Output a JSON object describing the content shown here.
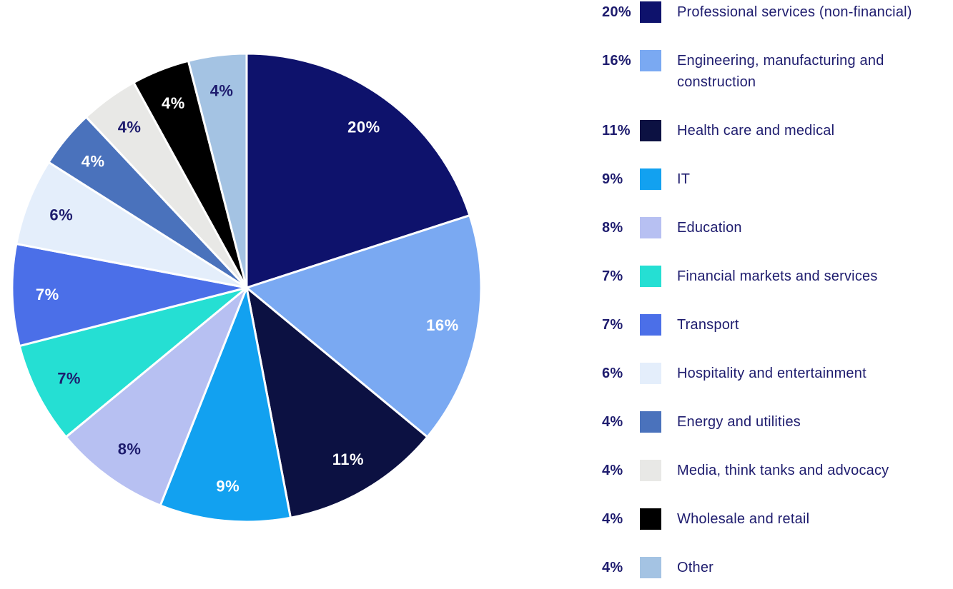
{
  "background_color": "#FFFFFF",
  "text_color": "#1E1C6E",
  "chart_data": {
    "type": "pie",
    "title": "",
    "legend_position": "right",
    "start_angle_deg": 0,
    "direction": "clockwise",
    "unit": "%",
    "slices": [
      {
        "label": "Professional services (non-financial)",
        "value": 20,
        "percent_label": "20%",
        "color": "#0E126C",
        "slice_text_color": "#FFFFFF"
      },
      {
        "label": "Engineering, manufacturing and construction",
        "value": 16,
        "percent_label": "16%",
        "color": "#7AA9F2",
        "slice_text_color": "#FFFFFF"
      },
      {
        "label": "Health care and medical",
        "value": 11,
        "percent_label": "11%",
        "color": "#0C1142",
        "slice_text_color": "#FFFFFF"
      },
      {
        "label": "IT",
        "value": 9,
        "percent_label": "9%",
        "color": "#12A1F0",
        "slice_text_color": "#FFFFFF"
      },
      {
        "label": "Education",
        "value": 8,
        "percent_label": "8%",
        "color": "#B7C0F2",
        "slice_text_color": "#1E1C6E"
      },
      {
        "label": "Financial markets and services",
        "value": 7,
        "percent_label": "7%",
        "color": "#25DFD3",
        "slice_text_color": "#1E1C6E"
      },
      {
        "label": "Transport",
        "value": 7,
        "percent_label": "7%",
        "color": "#4B6FE8",
        "slice_text_color": "#FFFFFF"
      },
      {
        "label": "Hospitality and entertainment",
        "value": 6,
        "percent_label": "6%",
        "color": "#E4EEFB",
        "slice_text_color": "#1E1C6E"
      },
      {
        "label": "Energy and utilities",
        "value": 4,
        "percent_label": "4%",
        "color": "#4A72BC",
        "slice_text_color": "#FFFFFF"
      },
      {
        "label": "Media, think tanks and advocacy",
        "value": 4,
        "percent_label": "4%",
        "color": "#E8E8E6",
        "slice_text_color": "#1E1C6E"
      },
      {
        "label": "Wholesale and retail",
        "value": 4,
        "percent_label": "4%",
        "color": "#000000",
        "slice_text_color": "#FFFFFF"
      },
      {
        "label": "Other",
        "value": 4,
        "percent_label": "4%",
        "color": "#A4C3E3",
        "slice_text_color": "#1E1C6E"
      }
    ]
  }
}
